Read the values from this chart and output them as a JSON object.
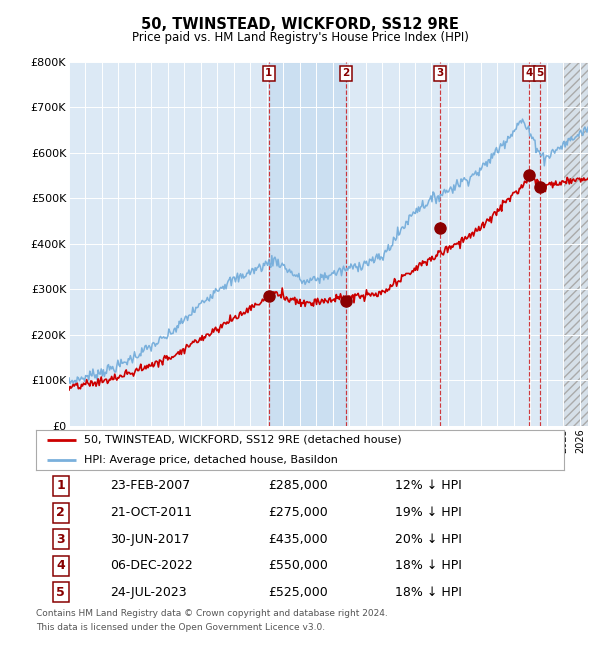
{
  "title": "50, TWINSTEAD, WICKFORD, SS12 9RE",
  "subtitle": "Price paid vs. HM Land Registry's House Price Index (HPI)",
  "footer1": "Contains HM Land Registry data © Crown copyright and database right 2024.",
  "footer2": "This data is licensed under the Open Government Licence v3.0.",
  "legend_red": "50, TWINSTEAD, WICKFORD, SS12 9RE (detached house)",
  "legend_blue": "HPI: Average price, detached house, Basildon",
  "background_color": "#dce9f5",
  "xmin": 1995.0,
  "xmax": 2026.5,
  "ymin": 0,
  "ymax": 800000,
  "yticks": [
    0,
    100000,
    200000,
    300000,
    400000,
    500000,
    600000,
    700000,
    800000
  ],
  "ytick_labels": [
    "£0",
    "£100K",
    "£200K",
    "£300K",
    "£400K",
    "£500K",
    "£600K",
    "£700K",
    "£800K"
  ],
  "sales": [
    {
      "num": 1,
      "date_label": "23-FEB-2007",
      "year": 2007.13,
      "price": 285000
    },
    {
      "num": 2,
      "date_label": "21-OCT-2011",
      "year": 2011.8,
      "price": 275000
    },
    {
      "num": 3,
      "date_label": "30-JUN-2017",
      "year": 2017.5,
      "price": 435000
    },
    {
      "num": 4,
      "date_label": "06-DEC-2022",
      "year": 2022.92,
      "price": 550000
    },
    {
      "num": 5,
      "date_label": "24-JUL-2023",
      "year": 2023.56,
      "price": 525000
    }
  ],
  "table_rows": [
    [
      "1",
      "23-FEB-2007",
      "£285,000",
      "12% ↓ HPI"
    ],
    [
      "2",
      "21-OCT-2011",
      "£275,000",
      "19% ↓ HPI"
    ],
    [
      "3",
      "30-JUN-2017",
      "£435,000",
      "20% ↓ HPI"
    ],
    [
      "4",
      "06-DEC-2022",
      "£550,000",
      "18% ↓ HPI"
    ],
    [
      "5",
      "24-JUL-2023",
      "£525,000",
      "18% ↓ HPI"
    ]
  ],
  "hatch_start": 2025.0,
  "shade_x1": 2007.13,
  "shade_x2": 2011.8
}
